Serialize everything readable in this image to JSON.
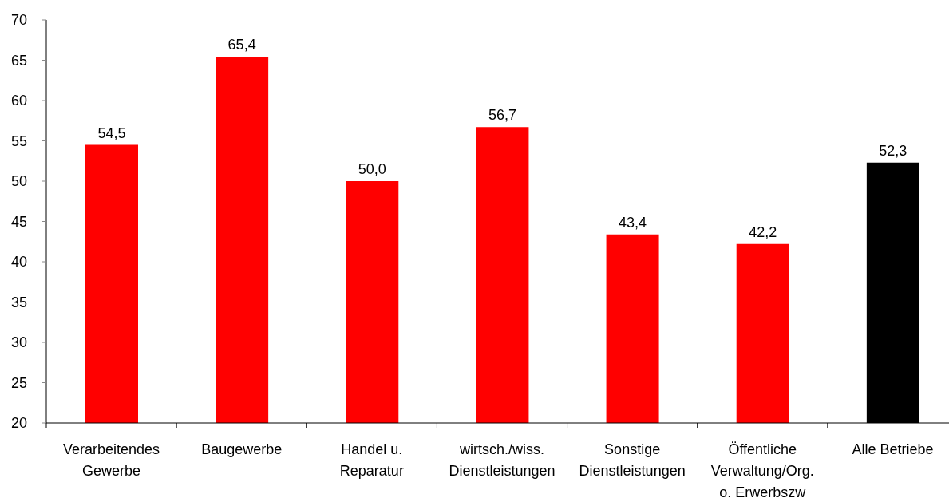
{
  "chart_data": {
    "type": "bar",
    "categories": [
      "Verarbeitendes Gewerbe",
      "Baugewerbe",
      "Handel u. Reparatur",
      "wirtsch./wiss. Dienstleistungen",
      "Sonstige Dienstleistungen",
      "Öffentliche Verwaltung/Org. o. Erwerbszw",
      "Alle Betriebe"
    ],
    "values": [
      54.5,
      65.4,
      50.0,
      56.7,
      43.4,
      42.2,
      52.3
    ],
    "colors": [
      "#ff0000",
      "#ff0000",
      "#ff0000",
      "#ff0000",
      "#ff0000",
      "#ff0000",
      "#000000"
    ],
    "value_labels": [
      "54,5",
      "65,4",
      "50,0",
      "56,7",
      "43,4",
      "42,2",
      "52,3"
    ],
    "ylim": [
      20,
      70
    ],
    "yticks": [
      20,
      25,
      30,
      35,
      40,
      45,
      50,
      55,
      60,
      65,
      70
    ]
  }
}
